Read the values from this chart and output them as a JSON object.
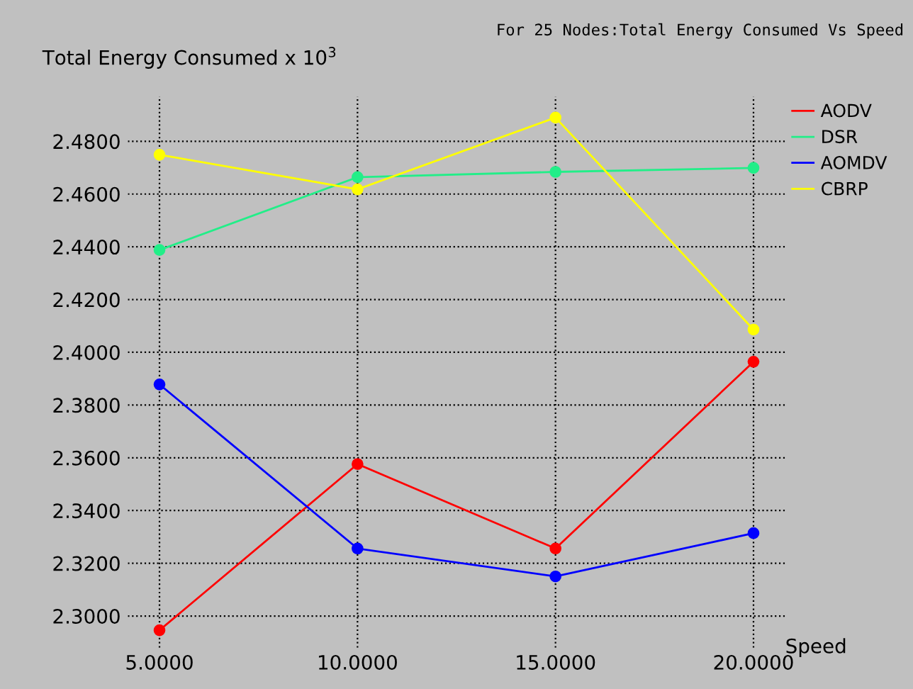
{
  "chart_data": {
    "type": "line",
    "title": "For 25 Nodes:Total Energy Consumed Vs Speed",
    "ylabel": "Total Energy Consumed x 10$^{3}$",
    "xlabel": "Speed",
    "x": [
      5,
      10,
      15,
      20
    ],
    "series": [
      {
        "name": "AODV",
        "color": "#ff0000",
        "values": [
          2.2946,
          2.3576,
          2.3256,
          2.3964
        ]
      },
      {
        "name": "DSR",
        "color": "#22ee88",
        "values": [
          2.4388,
          2.4664,
          2.4684,
          2.4699
        ]
      },
      {
        "name": "AOMDV",
        "color": "#0000ff",
        "values": [
          2.3878,
          2.3256,
          2.315,
          2.3314
        ]
      },
      {
        "name": "CBRP",
        "color": "#ffff00",
        "values": [
          2.4749,
          2.4618,
          2.489,
          2.4086
        ]
      }
    ],
    "xlim": [
      4.2,
      20.8
    ],
    "ylim": [
      2.288,
      2.497
    ],
    "xticks": [
      {
        "value": 5,
        "label": "5.0000"
      },
      {
        "value": 10,
        "label": "10.0000"
      },
      {
        "value": 15,
        "label": "15.0000"
      },
      {
        "value": 20,
        "label": "20.0000"
      }
    ],
    "yticks": [
      {
        "value": 2.3,
        "label": "2.3000"
      },
      {
        "value": 2.32,
        "label": "2.3200"
      },
      {
        "value": 2.34,
        "label": "2.3400"
      },
      {
        "value": 2.36,
        "label": "2.3600"
      },
      {
        "value": 2.38,
        "label": "2.3800"
      },
      {
        "value": 2.4,
        "label": "2.4000"
      },
      {
        "value": 2.42,
        "label": "2.4200"
      },
      {
        "value": 2.44,
        "label": "2.4400"
      },
      {
        "value": 2.46,
        "label": "2.4600"
      },
      {
        "value": 2.48,
        "label": "2.4800"
      }
    ],
    "grid": true,
    "legend": "top right",
    "marker": "circle",
    "line_style": "solid"
  }
}
